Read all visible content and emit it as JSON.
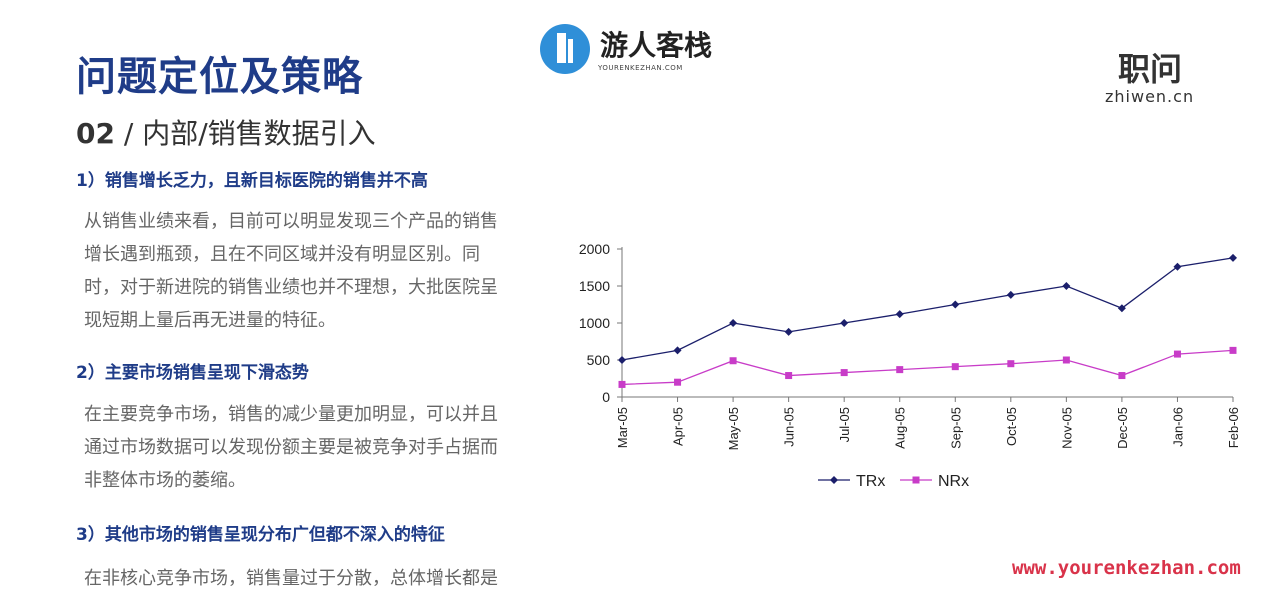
{
  "header": {
    "title": "问题定位及策略",
    "subtitle_num": "02",
    "subtitle_sep": " / ",
    "subtitle_text": "内部/销售数据引入"
  },
  "logo_center": {
    "name": "游人客栈",
    "sub": "YOURENKEZHAN.COM"
  },
  "logo_right": {
    "name": "职问",
    "domain": "zhiwen.cn"
  },
  "sections": [
    {
      "heading": "1）销售增长乏力，且新目标医院的销售并不高",
      "lines": [
        "从销售业绩来看，目前可以明显发现三个产品的销售",
        "增长遇到瓶颈，且在不同区域并没有明显区别。同",
        "时，对于新进院的销售业绩也并不理想，大批医院呈",
        "现短期上量后再无进量的特征。"
      ]
    },
    {
      "heading": "2）主要市场销售呈现下滑态势",
      "lines": [
        "在主要竞争市场，销售的减少量更加明显，可以并且",
        "通过市场数据可以发现份额主要是被竞争对手占据而",
        "非整体市场的萎缩。"
      ]
    },
    {
      "heading": "3）其他市场的销售呈现分布广但都不深入的特征",
      "lines": [
        "在非核心竞争市场，销售量过于分散，总体增长都是"
      ]
    }
  ],
  "watermark": "www.yourenkezhan.com",
  "chart_data": {
    "type": "line",
    "categories": [
      "Mar-05",
      "Apr-05",
      "May-05",
      "Jun-05",
      "Jul-05",
      "Aug-05",
      "Sep-05",
      "Oct-05",
      "Nov-05",
      "Dec-05",
      "Jan-06",
      "Feb-06"
    ],
    "series": [
      {
        "name": "TRx",
        "color": "#1b1f6b",
        "marker": "diamond",
        "values": [
          500,
          630,
          1000,
          880,
          1000,
          1120,
          1250,
          1380,
          1500,
          1200,
          1760,
          1880
        ]
      },
      {
        "name": "NRx",
        "color": "#c83cc8",
        "marker": "square",
        "values": [
          170,
          200,
          490,
          290,
          330,
          370,
          410,
          450,
          500,
          290,
          580,
          630
        ]
      }
    ],
    "ylim": [
      0,
      2000
    ],
    "yticks": [
      0,
      500,
      1000,
      1500,
      2000
    ],
    "legend": "bottom",
    "grid": false
  }
}
